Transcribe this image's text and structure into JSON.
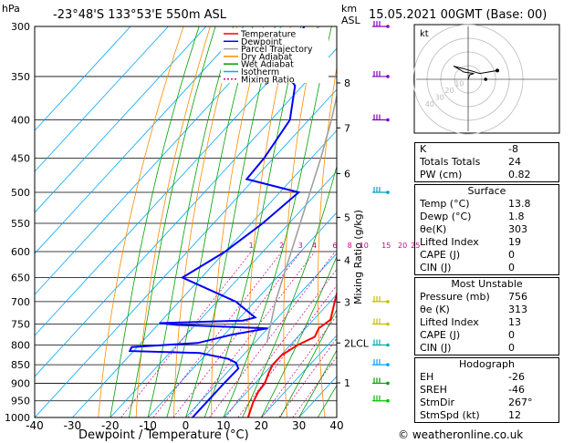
{
  "header": {
    "location": "-23°48'S  133°53'E  550m  ASL",
    "datetime": "15.05.2021  00GMT  (Base: 00)",
    "hpa_label": "hPa",
    "km_label": "km",
    "asl_label": "ASL",
    "mixing_label": "Mixing Ratio (g/kg)",
    "xlabel": "Dewpoint / Temperature (°C)",
    "lcl_label": "LCL",
    "kt_label": "kt",
    "copyright": "© weatheronline.co.uk"
  },
  "legend": [
    {
      "label": "Temperature",
      "color": "#ff0000",
      "dash": "none"
    },
    {
      "label": "Dewpoint",
      "color": "#0000ff",
      "dash": "none"
    },
    {
      "label": "Parcel Trajectory",
      "color": "#a0a0a0",
      "dash": "none"
    },
    {
      "label": "Dry Adiabat",
      "color": "#ff8c00",
      "dash": "none"
    },
    {
      "label": "Wet Adiabat",
      "color": "#00a000",
      "dash": "none"
    },
    {
      "label": "Isotherm",
      "color": "#00a8ff",
      "dash": "none"
    },
    {
      "label": "Mixing Ratio",
      "color": "#d0008a",
      "dash": "2,2"
    }
  ],
  "chart_data": {
    "type": "line",
    "title": "",
    "xlabel": "Dewpoint / Temperature (°C)",
    "ylabel": "hPa",
    "x_ticks": [
      -40,
      -30,
      -20,
      -10,
      0,
      10,
      20,
      30,
      40
    ],
    "p_ticks": [
      300,
      350,
      400,
      450,
      500,
      550,
      600,
      650,
      700,
      750,
      800,
      850,
      900,
      950,
      1000
    ],
    "km_ticks": [
      {
        "label": "8",
        "p": 357
      },
      {
        "label": "7",
        "p": 410
      },
      {
        "label": "6",
        "p": 472
      },
      {
        "label": "5",
        "p": 540
      },
      {
        "label": "4",
        "p": 616
      },
      {
        "label": "3",
        "p": 701
      },
      {
        "label": "2",
        "p": 795
      },
      {
        "label": "1",
        "p": 899
      }
    ],
    "mixing_ratio_labels": [
      {
        "label": "1",
        "g": 1
      },
      {
        "label": "2",
        "g": 2
      },
      {
        "label": "3",
        "g": 3
      },
      {
        "label": "4",
        "g": 4
      },
      {
        "label": "6",
        "g": 6
      },
      {
        "label": "8",
        "g": 8
      },
      {
        "label": "10",
        "g": 10
      },
      {
        "label": "15",
        "g": 15
      },
      {
        "label": "20",
        "g": 20
      },
      {
        "label": "25",
        "g": 25
      }
    ],
    "lcl_p": 795,
    "series": [
      {
        "name": "Temperature",
        "color": "#ff0000",
        "points": [
          [
            1000,
            16.5
          ],
          [
            955,
            14.2
          ],
          [
            925,
            13.0
          ],
          [
            900,
            12.6
          ],
          [
            870,
            11.0
          ],
          [
            850,
            10.2
          ],
          [
            825,
            10.2
          ],
          [
            800,
            12.0
          ],
          [
            780,
            14.5
          ],
          [
            760,
            13.5
          ],
          [
            750,
            14.0
          ],
          [
            740,
            14.5
          ],
          [
            700,
            11.2
          ],
          [
            650,
            7.0
          ],
          [
            600,
            2.5
          ],
          [
            550,
            -3.0
          ],
          [
            500,
            -8.5
          ],
          [
            450,
            -15.0
          ],
          [
            400,
            -22.0
          ],
          [
            350,
            -30.0
          ],
          [
            330,
            -33.0
          ],
          [
            300,
            -38.5
          ]
        ]
      },
      {
        "name": "Dewpoint",
        "color": "#0000ff",
        "points": [
          [
            1000,
            1.8
          ],
          [
            950,
            1.8
          ],
          [
            900,
            1.8
          ],
          [
            860,
            2.0
          ],
          [
            845,
            0.0
          ],
          [
            835,
            -3.0
          ],
          [
            820,
            -12.0
          ],
          [
            815,
            -31.0
          ],
          [
            805,
            -31.5
          ],
          [
            795,
            -15.0
          ],
          [
            775,
            -8.0
          ],
          [
            760,
            0.0
          ],
          [
            752,
            -25.0
          ],
          [
            748,
            -30.0
          ],
          [
            742,
            -8.5
          ],
          [
            735,
            -6.0
          ],
          [
            700,
            -15.0
          ],
          [
            650,
            -35.0
          ],
          [
            600,
            -30.0
          ],
          [
            550,
            -27.0
          ],
          [
            500,
            -25.0
          ],
          [
            480,
            -42.0
          ],
          [
            450,
            -42.5
          ],
          [
            400,
            -45.0
          ],
          [
            360,
            -52.0
          ],
          [
            340,
            -60.0
          ],
          [
            300,
            -64.0
          ]
        ]
      },
      {
        "name": "Parcel Trajectory",
        "color": "#a0a0a0",
        "points": [
          [
            795,
            3.3
          ],
          [
            700,
            -4.5
          ],
          [
            600,
            -12.5
          ],
          [
            500,
            -22.0
          ],
          [
            450,
            -27.5
          ],
          [
            400,
            -34.0
          ],
          [
            350,
            -42.0
          ],
          [
            300,
            -51.0
          ]
        ]
      }
    ]
  },
  "indices_table": [
    {
      "key": "K",
      "value": "-8"
    },
    {
      "key": "Totals Totals",
      "value": "24"
    },
    {
      "key": "PW (cm)",
      "value": "0.82"
    }
  ],
  "surface_table": {
    "title": "Surface",
    "rows": [
      {
        "key": "Temp (°C)",
        "value": "13.8"
      },
      {
        "key": "Dewp (°C)",
        "value": "1.8"
      },
      {
        "key": "θe(K)",
        "value": "303"
      },
      {
        "key": "Lifted Index",
        "value": "19"
      },
      {
        "key": "CAPE (J)",
        "value": "0"
      },
      {
        "key": "CIN (J)",
        "value": "0"
      }
    ]
  },
  "unstable_table": {
    "title": "Most Unstable",
    "rows": [
      {
        "key": "Pressure (mb)",
        "value": "756"
      },
      {
        "key": "θe (K)",
        "value": "313"
      },
      {
        "key": "Lifted Index",
        "value": "13"
      },
      {
        "key": "CAPE (J)",
        "value": "0"
      },
      {
        "key": "CIN (J)",
        "value": "0"
      }
    ]
  },
  "hodograph_table": {
    "title": "Hodograph",
    "rows": [
      {
        "key": "EH",
        "value": "-26"
      },
      {
        "key": "SREH",
        "value": "-46"
      },
      {
        "key": "StmDir",
        "value": "267°"
      },
      {
        "key": "StmSpd (kt)",
        "value": "12"
      }
    ]
  },
  "hodograph": {
    "ring_labels": [
      "10",
      "20",
      "30",
      "40"
    ],
    "trace": [
      [
        0,
        0
      ],
      [
        1,
        3
      ],
      [
        4,
        4
      ],
      [
        -3,
        5
      ],
      [
        -8,
        8
      ],
      [
        -10,
        9
      ],
      [
        -2,
        7
      ],
      [
        8,
        4
      ],
      [
        20,
        6
      ]
    ],
    "storm_motion": [
      12,
      0
    ]
  }
}
